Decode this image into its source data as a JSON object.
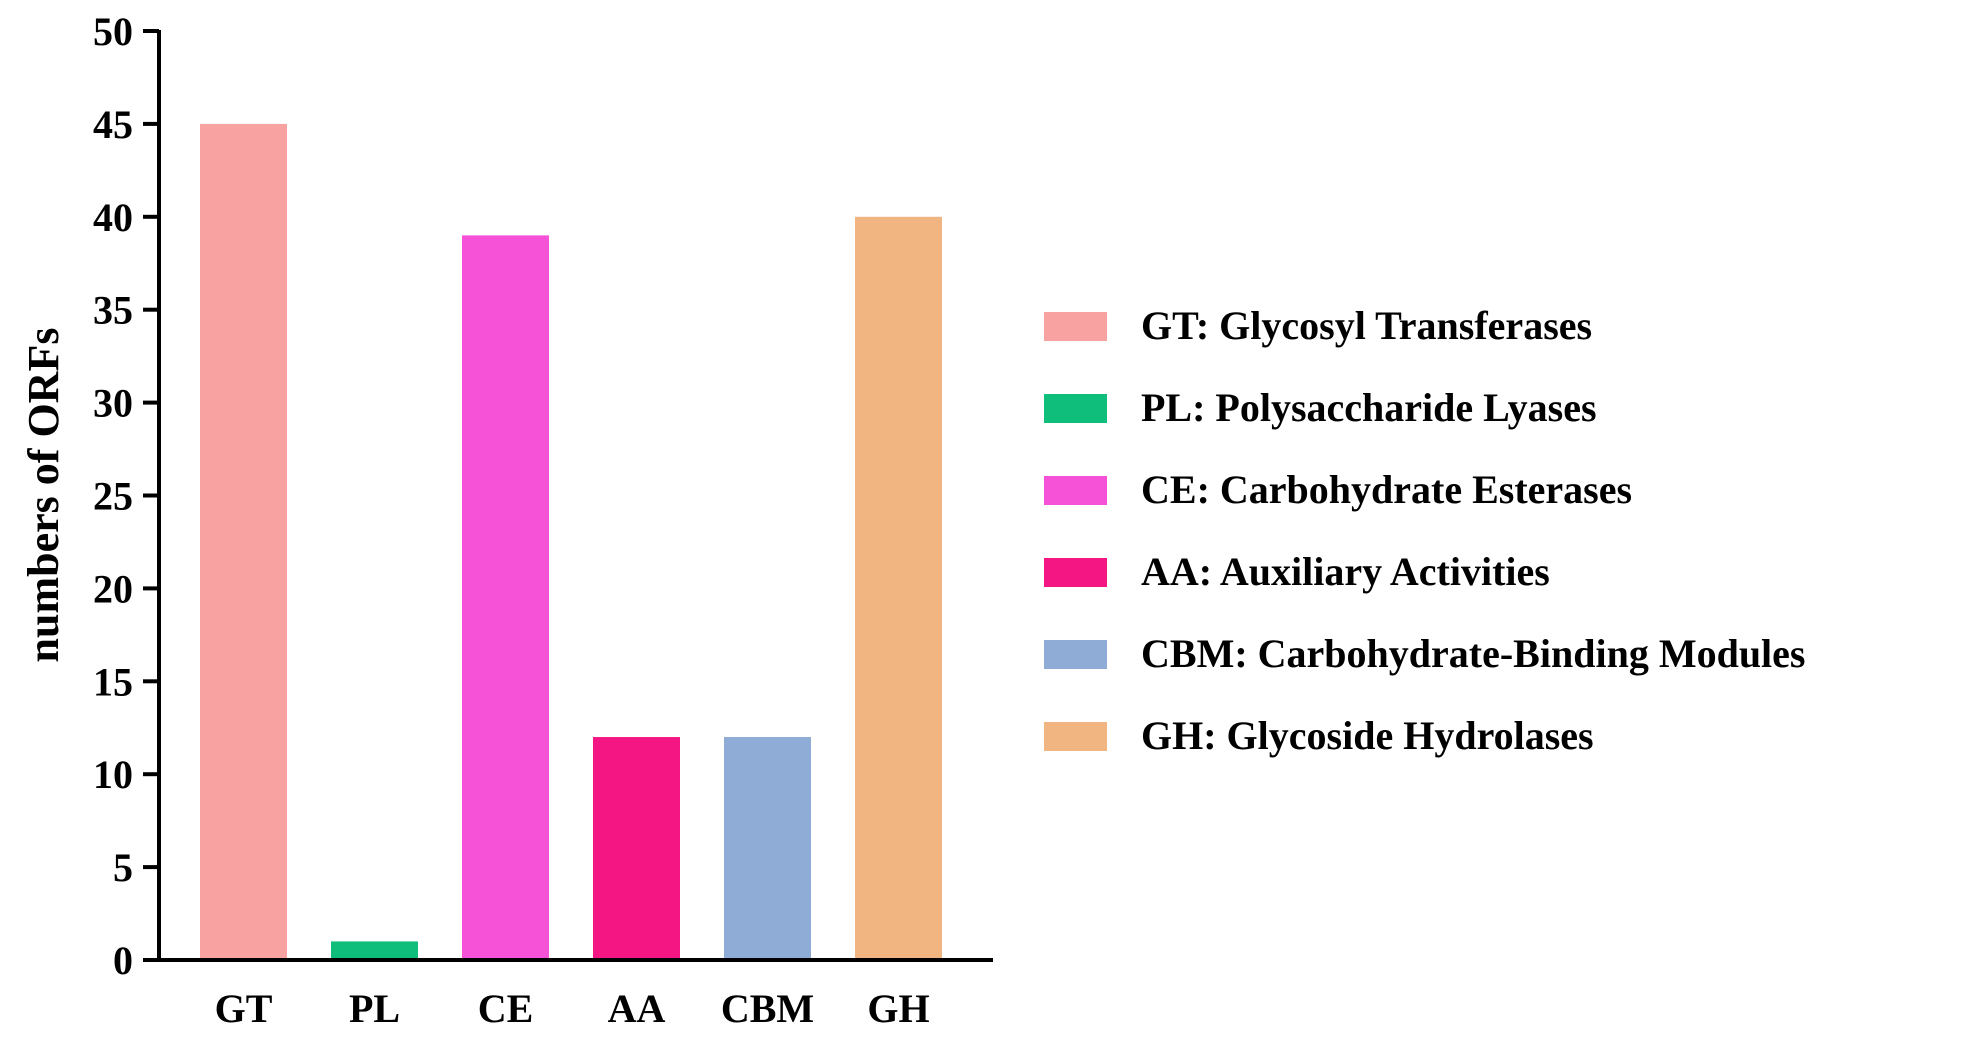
{
  "chart_data": {
    "type": "bar",
    "categories": [
      "GT",
      "PL",
      "CE",
      "AA",
      "CBM",
      "GH"
    ],
    "values": [
      45,
      1,
      39,
      12,
      12,
      40
    ],
    "colors": [
      "#F9A2A2",
      "#10BE7B",
      "#F652D8",
      "#F41683",
      "#8EACD5",
      "#F1B582"
    ],
    "ylabel": "numbers of ORFs",
    "ylim": [
      0,
      50
    ],
    "yticks": [
      "0",
      "5",
      "10",
      "15",
      "20",
      "25",
      "30",
      "35",
      "40",
      "45",
      "50"
    ],
    "grid": false,
    "legend": {
      "placement": "right",
      "entries": [
        "GT: Glycosyl Transferases",
        "PL: Polysaccharide Lyases",
        "CE: Carbohydrate Esterases",
        "AA: Auxiliary Activities",
        "CBM: Carbohydrate-Binding Modules",
        "GH: Glycoside Hydrolases"
      ]
    }
  }
}
